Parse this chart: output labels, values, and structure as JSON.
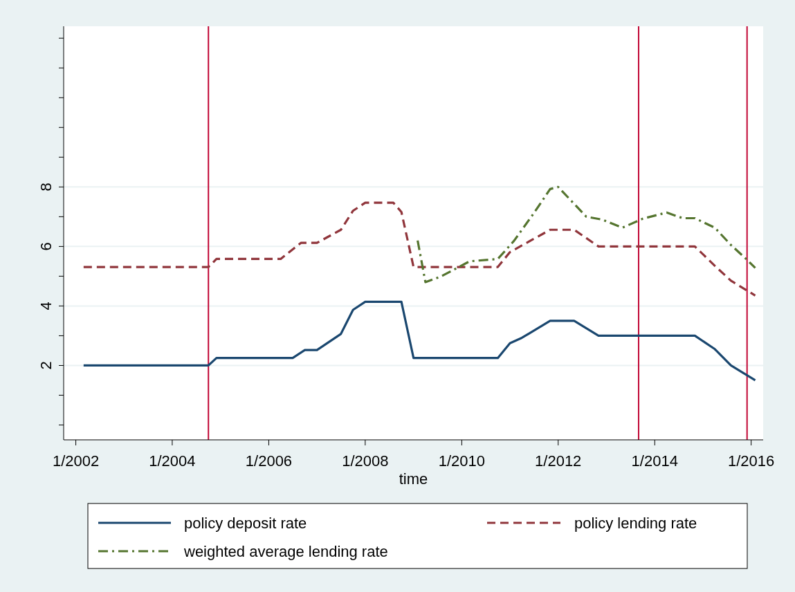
{
  "chart_data": {
    "type": "line",
    "xlabel": "time",
    "xlim": [
      "2001-10",
      "2016-04"
    ],
    "xticks": [
      {
        "value": "2002-01",
        "label": "1/2002"
      },
      {
        "value": "2004-01",
        "label": "1/2004"
      },
      {
        "value": "2006-01",
        "label": "1/2006"
      },
      {
        "value": "2008-01",
        "label": "1/2008"
      },
      {
        "value": "2010-01",
        "label": "1/2010"
      },
      {
        "value": "2012-01",
        "label": "1/2012"
      },
      {
        "value": "2014-01",
        "label": "1/2014"
      },
      {
        "value": "2016-01",
        "label": "1/2016"
      }
    ],
    "ylim": [
      -0.5,
      13.4
    ],
    "yticks": [
      {
        "value": 0,
        "label": null
      },
      {
        "value": 1,
        "label": null
      },
      2,
      {
        "value": 3,
        "label": null
      },
      4,
      {
        "value": 5,
        "label": null
      },
      6,
      {
        "value": 7,
        "label": null
      },
      8,
      {
        "value": 9,
        "label": null
      },
      {
        "value": 10,
        "label": null
      },
      {
        "value": 11,
        "label": null
      },
      {
        "value": 12,
        "label": null
      },
      {
        "value": 13,
        "label": null
      }
    ],
    "grid": "y",
    "legend": "bottom",
    "series": [
      {
        "name": "policy deposit rate",
        "color": "#1a476f",
        "line_style": "solid",
        "x": [
          "2002-03",
          "2004-10",
          "2004-12",
          "2006-07",
          "2006-10",
          "2007-01",
          "2007-07",
          "2007-10",
          "2008-01",
          "2008-10",
          "2009-01",
          "2010-10",
          "2011-01",
          "2011-04",
          "2011-11",
          "2012-05",
          "2012-11",
          "2014-11",
          "2015-04",
          "2015-08",
          "2016-02"
        ],
        "values": [
          2.0,
          2.0,
          2.25,
          2.25,
          2.52,
          2.52,
          3.06,
          3.87,
          4.14,
          4.14,
          2.25,
          2.25,
          2.75,
          2.93,
          3.5,
          3.5,
          3.0,
          3.0,
          2.55,
          2.0,
          1.5
        ]
      },
      {
        "name": "policy lending rate",
        "color": "#90353b",
        "line_style": "dashed",
        "x": [
          "2002-03",
          "2004-10",
          "2004-12",
          "2006-04",
          "2006-09",
          "2007-01",
          "2007-07",
          "2007-10",
          "2008-01",
          "2008-08",
          "2008-10",
          "2009-01",
          "2010-10",
          "2011-01",
          "2011-11",
          "2012-05",
          "2012-11",
          "2014-11",
          "2015-04",
          "2015-08",
          "2016-02"
        ],
        "values": [
          5.31,
          5.31,
          5.58,
          5.58,
          6.12,
          6.12,
          6.56,
          7.2,
          7.47,
          7.47,
          7.16,
          5.31,
          5.31,
          5.81,
          6.56,
          6.56,
          6.0,
          6.0,
          5.35,
          4.85,
          4.35
        ]
      },
      {
        "name": "weighted average lending rate",
        "color": "#55752f",
        "line_style": "dashdot",
        "x": [
          "2009-02",
          "2009-04",
          "2009-08",
          "2010-03",
          "2010-10",
          "2011-02",
          "2011-07",
          "2011-11",
          "2012-01",
          "2012-08",
          "2012-12",
          "2013-05",
          "2013-10",
          "2014-04",
          "2014-08",
          "2014-11",
          "2015-04",
          "2015-08",
          "2015-12",
          "2016-02"
        ],
        "values": [
          6.2,
          4.8,
          5.0,
          5.5,
          5.58,
          6.19,
          7.12,
          7.93,
          8.0,
          7.0,
          6.9,
          6.63,
          6.93,
          7.14,
          6.95,
          6.95,
          6.63,
          6.05,
          5.55,
          5.28
        ]
      }
    ],
    "ref_lines": [
      {
        "axis": "x",
        "value": "2004-10",
        "color": "#c10534"
      },
      {
        "axis": "x",
        "value": "2013-09",
        "color": "#c10534"
      },
      {
        "axis": "x",
        "value": "2015-12",
        "color": "#c10534"
      }
    ]
  }
}
